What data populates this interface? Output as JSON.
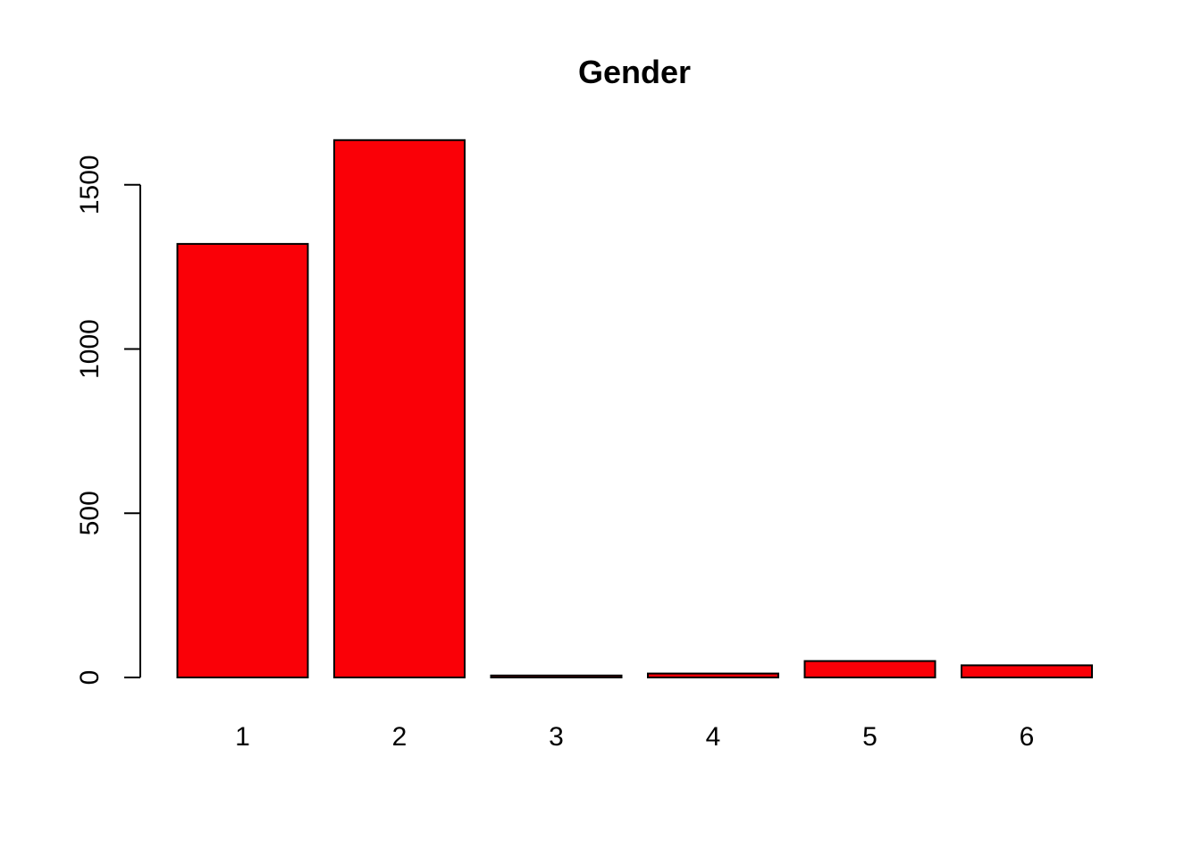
{
  "chart_data": {
    "type": "bar",
    "title": "Gender",
    "xlabel": "",
    "ylabel": "",
    "categories": [
      "1",
      "2",
      "3",
      "4",
      "5",
      "6"
    ],
    "values": [
      1320,
      1636,
      6,
      12,
      50,
      37
    ],
    "yticks": [
      0,
      500,
      1000,
      1500
    ],
    "ylim": [
      0,
      1636
    ],
    "bar_color": "#FA0007",
    "grid": false,
    "legend": "none"
  }
}
